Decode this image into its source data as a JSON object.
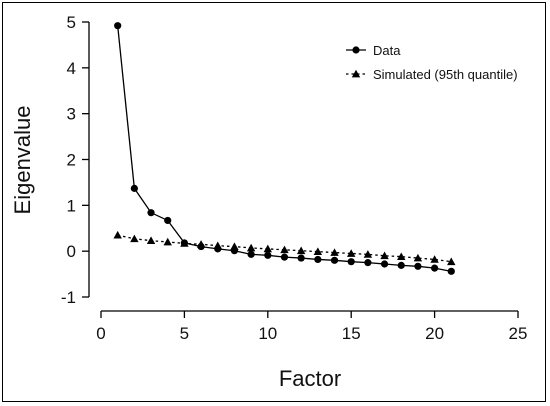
{
  "chart_data": {
    "type": "line",
    "xlabel": "Factor",
    "ylabel": "Eigenvalue",
    "xlim": [
      0,
      25
    ],
    "ylim": [
      -1,
      5
    ],
    "xticks": [
      0,
      5,
      10,
      15,
      20,
      25
    ],
    "yticks": [
      -1,
      0,
      1,
      2,
      3,
      4,
      5
    ],
    "grid": false,
    "legend_position": "top-right",
    "x": [
      1,
      2,
      3,
      4,
      5,
      6,
      7,
      8,
      9,
      10,
      11,
      12,
      13,
      14,
      15,
      16,
      17,
      18,
      19,
      20,
      21
    ],
    "series": [
      {
        "name": "Data",
        "marker": "circle",
        "line": "solid",
        "color": "#000000",
        "values": [
          4.92,
          1.37,
          0.84,
          0.67,
          0.18,
          0.1,
          0.05,
          0.01,
          -0.07,
          -0.09,
          -0.13,
          -0.15,
          -0.18,
          -0.2,
          -0.23,
          -0.25,
          -0.28,
          -0.31,
          -0.33,
          -0.37,
          -0.44
        ]
      },
      {
        "name": "Simulated (95th quantile)",
        "marker": "triangle",
        "line": "dotted",
        "color": "#000000",
        "values": [
          0.35,
          0.27,
          0.23,
          0.2,
          0.17,
          0.15,
          0.12,
          0.1,
          0.07,
          0.05,
          0.03,
          0.01,
          -0.01,
          -0.03,
          -0.05,
          -0.07,
          -0.1,
          -0.12,
          -0.15,
          -0.18,
          -0.23
        ]
      }
    ]
  }
}
